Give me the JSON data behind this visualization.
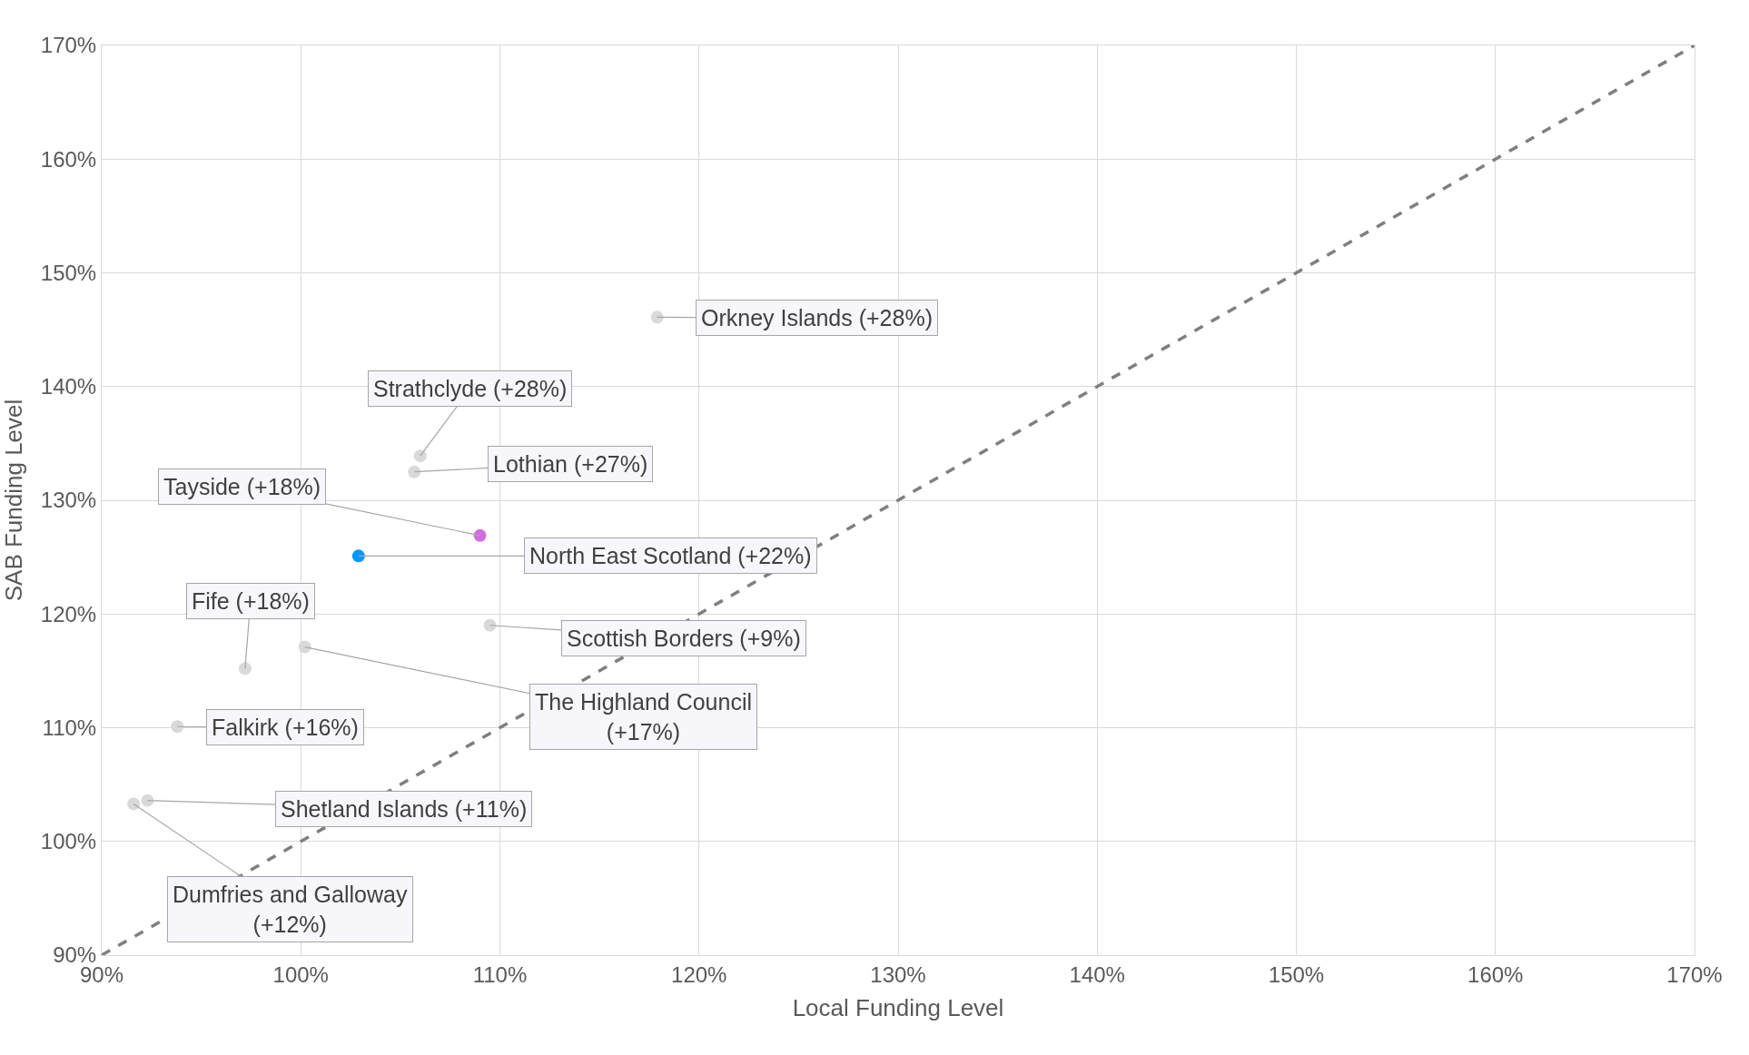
{
  "chart_data": {
    "type": "scatter",
    "xlabel": "Local Funding Level",
    "ylabel": "SAB Funding Level",
    "series": [
      {
        "type": "line",
        "color": "#7f7f7f",
        "line_style": "dashed",
        "marker": "none",
        "x": [
          90,
          170
        ],
        "values": [
          90,
          170
        ]
      },
      {
        "color": "#d9d9d9",
        "marker": "circle",
        "x": [
          117.9,
          106.0,
          105.7,
          109.5,
          97.2,
          100.2,
          93.8,
          92.3,
          91.6
        ],
        "values": [
          146.1,
          133.9,
          132.5,
          119.0,
          115.2,
          117.1,
          110.1,
          103.6,
          103.3
        ]
      },
      {
        "color": "#0096ff",
        "marker": "circle",
        "x": [
          102.9
        ],
        "values": [
          125.1
        ]
      },
      {
        "color": "#d36ddf",
        "marker": "circle",
        "x": [
          109.0
        ],
        "values": [
          126.9
        ]
      }
    ],
    "annotations": [
      {
        "text": "Orkney Islands (+28%)",
        "x": 117.9,
        "y": 146.1
      },
      {
        "text": "Strathclyde (+28%)",
        "x": 106.0,
        "y": 133.9
      },
      {
        "text": "Lothian (+27%)",
        "x": 105.7,
        "y": 132.5
      },
      {
        "text": "Tayside (+18%)",
        "x": 109.0,
        "y": 126.9
      },
      {
        "text": "North East Scotland (+22%)",
        "x": 102.9,
        "y": 125.1
      },
      {
        "text": "Scottish Borders (+9%)",
        "x": 109.5,
        "y": 119.0
      },
      {
        "text": "Fife (+18%)",
        "x": 97.2,
        "y": 115.2
      },
      {
        "text": "The Highland Council\n(+17%)",
        "x": 100.2,
        "y": 117.1
      },
      {
        "text": "Falkirk (+16%)",
        "x": 93.8,
        "y": 110.1
      },
      {
        "text": "Shetland Islands (+11%)",
        "x": 92.3,
        "y": 103.6
      },
      {
        "text": "Dumfries and Galloway\n(+12%)",
        "x": 91.6,
        "y": 103.3
      }
    ],
    "xlim": [
      90,
      170
    ],
    "xticks": [
      {
        "value": 90,
        "label": "90%"
      },
      {
        "value": 100,
        "label": "100%"
      },
      {
        "value": 110,
        "label": "110%"
      },
      {
        "value": 120,
        "label": "120%"
      },
      {
        "value": 130,
        "label": "130%"
      },
      {
        "value": 140,
        "label": "140%"
      },
      {
        "value": 150,
        "label": "150%"
      },
      {
        "value": 160,
        "label": "160%"
      },
      {
        "value": 170,
        "label": "170%"
      }
    ],
    "ylim": [
      90,
      170
    ],
    "yticks": [
      {
        "value": 90,
        "label": "90%"
      },
      {
        "value": 100,
        "label": "100%"
      },
      {
        "value": 110,
        "label": "110%"
      },
      {
        "value": 120,
        "label": "120%"
      },
      {
        "value": 130,
        "label": "130%"
      },
      {
        "value": 140,
        "label": "140%"
      },
      {
        "value": 150,
        "label": "150%"
      },
      {
        "value": 160,
        "label": "160%"
      },
      {
        "value": 170,
        "label": "170%"
      }
    ],
    "grid": true
  }
}
